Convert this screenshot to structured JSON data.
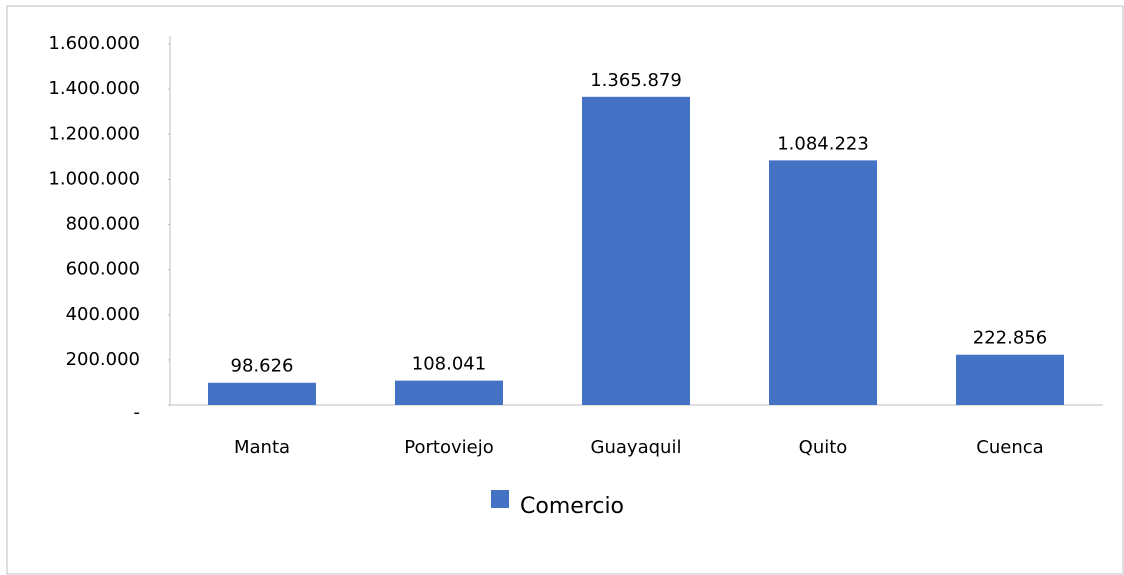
{
  "chart_data": {
    "type": "bar",
    "categories": [
      "Manta",
      "Portoviejo",
      "Guayaquil",
      "Quito",
      "Cuenca"
    ],
    "series": [
      {
        "name": "Comercio",
        "color": "#4472c4",
        "values": [
          98626,
          108041,
          1365879,
          1084223,
          222856
        ],
        "value_labels": [
          "98.626",
          "108.041",
          "1.365.879",
          "1.084.223",
          "222.856"
        ]
      }
    ],
    "ylim": [
      0,
      1600000
    ],
    "yticks": [
      {
        "value": 0,
        "label": "-"
      },
      {
        "value": 200000,
        "label": "200.000"
      },
      {
        "value": 400000,
        "label": "400.000"
      },
      {
        "value": 600000,
        "label": "600.000"
      },
      {
        "value": 800000,
        "label": "800.000"
      },
      {
        "value": 1000000,
        "label": "1.000.000"
      },
      {
        "value": 1200000,
        "label": "1.200.000"
      },
      {
        "value": 1400000,
        "label": "1.400.000"
      },
      {
        "value": 1600000,
        "label": "1.600.000"
      }
    ],
    "grid": false,
    "legend": "bottom"
  }
}
